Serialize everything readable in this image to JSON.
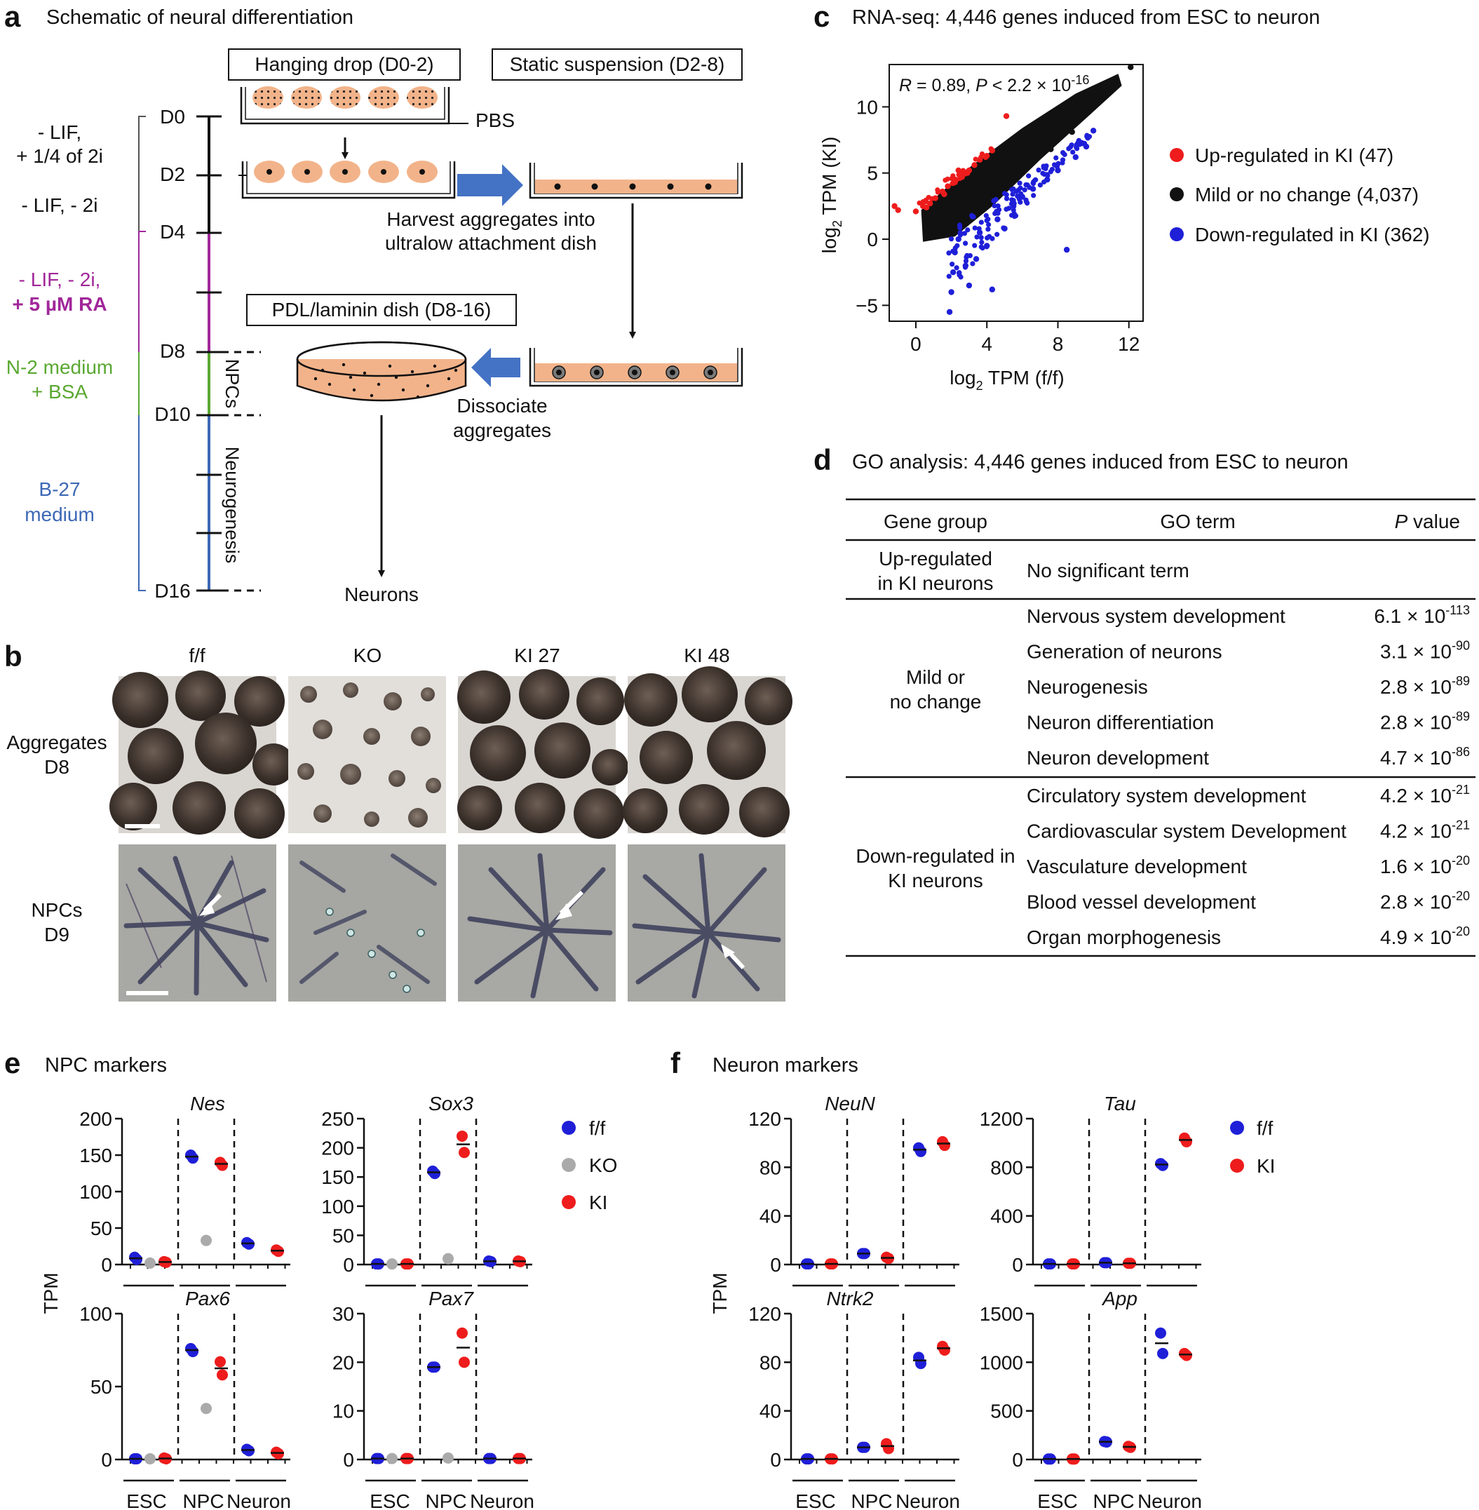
{
  "colors": {
    "ff": "#1f1fd8",
    "ko": "#aaaaaa",
    "ki": "#ee1c1c",
    "black": "#111111",
    "ra_purple": "#a1279a",
    "n2_green": "#5aa832",
    "b27_blue": "#3d68b5",
    "aggregate_fill": "#f2b38a",
    "arrow_blue": "#4472c4"
  },
  "panel_a": {
    "label": "a",
    "title": "Schematic of neural differentiation",
    "medium1_line1": "- LIF,",
    "medium1_line2": "+ 1/4 of 2i",
    "medium2": "- LIF, - 2i",
    "medium3_line1": "- LIF, - 2i,",
    "medium3_line2": "+ 5 µM RA",
    "medium4_line1": "N-2 medium",
    "medium4_line2": "+ BSA",
    "medium5_line1": "B-27",
    "medium5_line2": "medium",
    "days": [
      "D0",
      "D2",
      "D4",
      "D8",
      "D10",
      "D16"
    ],
    "npcs_label": "NPCs",
    "neurogenesis_label": "Neurogenesis",
    "hanging_drop": "Hanging drop (D0-2)",
    "static_suspension": "Static suspension (D2-8)",
    "pbs": "PBS",
    "harvest_line1": "Harvest aggregates into",
    "harvest_line2": "ultralow attachment dish",
    "pdl_dish": "PDL/laminin dish (D8-16)",
    "dissociate_line1": "Dissociate",
    "dissociate_line2": "aggregates",
    "neurons": "Neurons"
  },
  "panel_b": {
    "label": "b",
    "columns": [
      "f/f",
      "KO",
      "KI 27",
      "KI 48"
    ],
    "row1_line1": "Aggregates",
    "row1_line2": "D8",
    "row2_line1": "NPCs",
    "row2_line2": "D9"
  },
  "panel_c": {
    "label": "c",
    "title": "RNA-seq: 4,446 genes induced from ESC to neuron",
    "stat_r": "R",
    "stat_r_val": " = 0.89, ",
    "stat_p": "P",
    "stat_p_val": " < 2.2 × 10",
    "stat_p_exp": "-16",
    "xlabel_a": "log",
    "xlabel_sub": "2",
    "xlabel_b": " TPM (f/f)",
    "ylabel_a": "log",
    "ylabel_sub": "2",
    "ylabel_b": " TPM (KI)",
    "xticks": [
      "0",
      "4",
      "8",
      "12"
    ],
    "yticks": [
      "−5",
      "0",
      "5",
      "10"
    ],
    "legend": [
      {
        "label": "Up-regulated in KI (47)",
        "color": "#ee1c1c"
      },
      {
        "label": "Mild or no change (4,037)",
        "color": "#111111"
      },
      {
        "label": "Down-regulated in KI (362)",
        "color": "#1f1fd8"
      }
    ]
  },
  "panel_d": {
    "label": "d",
    "title": "GO analysis: 4,446 genes induced from ESC to neuron",
    "header_group": "Gene group",
    "header_term": "GO term",
    "header_p": "P",
    "header_p_rest": " value",
    "group_up_line1": "Up-regulated",
    "group_up_line2": "in KI neurons",
    "up_term": "No significant term",
    "group_mild_line1": "Mild or",
    "group_mild_line2": "no change",
    "group_down_line1": "Down-regulated in",
    "group_down_line2": "KI neurons",
    "mild_rows": [
      {
        "term": "Nervous system development",
        "p": "6.1 × 10",
        "exp": "-113"
      },
      {
        "term": "Generation of neurons",
        "p": "3.1 × 10",
        "exp": "-90"
      },
      {
        "term": "Neurogenesis",
        "p": "2.8 × 10",
        "exp": "-89"
      },
      {
        "term": "Neuron differentiation",
        "p": "2.8 × 10",
        "exp": "-89"
      },
      {
        "term": "Neuron development",
        "p": "4.7 × 10",
        "exp": "-86"
      }
    ],
    "down_rows": [
      {
        "term": "Circulatory system development",
        "p": "4.2 × 10",
        "exp": "-21"
      },
      {
        "term": "Cardiovascular system Development",
        "p": "4.2 × 10",
        "exp": "-21"
      },
      {
        "term": "Vasculature development",
        "p": "1.6 × 10",
        "exp": "-20"
      },
      {
        "term": "Blood vessel development",
        "p": "2.8 × 10",
        "exp": "-20"
      },
      {
        "term": "Organ morphogenesis",
        "p": "4.9 × 10",
        "exp": "-20"
      }
    ]
  },
  "panel_e": {
    "label": "e",
    "title": "NPC markers",
    "ylabel": "TPM",
    "groups": [
      "ESC",
      "NPC",
      "Neuron"
    ],
    "legend": [
      "f/f",
      "KO",
      "KI"
    ]
  },
  "panel_f": {
    "label": "f",
    "title": "Neuron markers",
    "ylabel": "TPM",
    "groups": [
      "ESC",
      "NPC",
      "Neuron"
    ],
    "legend": [
      "f/f",
      "KI"
    ]
  },
  "chart_data": [
    {
      "type": "scatter",
      "panel": "c",
      "title": "RNA-seq: 4,446 genes induced from ESC to neuron",
      "xlabel": "log2 TPM (f/f)",
      "ylabel": "log2 TPM (KI)",
      "xlim": [
        -1.5,
        12.8
      ],
      "ylim": [
        -6.2,
        13.2
      ],
      "xticks": [
        0,
        4,
        8,
        12
      ],
      "yticks": [
        -5,
        0,
        5,
        10
      ],
      "annotation": "R = 0.89, P < 2.2 × 10^-16",
      "series": [
        {
          "name": "Up-regulated in KI (47)",
          "color": "#ee1c1c",
          "points": [
            [
              -1.2,
              2.5
            ],
            [
              -1.0,
              2.2
            ],
            [
              0.0,
              2.1
            ],
            [
              0.4,
              2.5
            ],
            [
              0.8,
              2.7
            ],
            [
              1.1,
              3.1
            ],
            [
              1.5,
              3.6
            ],
            [
              1.8,
              4.0
            ],
            [
              2.2,
              4.3
            ],
            [
              2.6,
              4.7
            ],
            [
              3.0,
              5.2
            ],
            [
              3.3,
              5.6
            ],
            [
              3.6,
              6.0
            ],
            [
              4.0,
              6.3
            ],
            [
              4.3,
              6.7
            ],
            [
              5.1,
              9.3
            ],
            [
              2.4,
              5.2
            ],
            [
              1.6,
              3.4
            ],
            [
              0.6,
              2.4
            ],
            [
              2.9,
              5.0
            ]
          ]
        },
        {
          "name": "Mild or no change (4,037)",
          "color": "#111111",
          "points": [
            [
              12.1,
              13.0
            ],
            [
              11.2,
              12.1
            ],
            [
              10.6,
              11.5
            ],
            [
              10.0,
              10.8
            ],
            [
              9.5,
              10.2
            ],
            [
              9.0,
              9.6
            ],
            [
              8.4,
              9.2
            ],
            [
              7.8,
              8.5
            ],
            [
              7.2,
              7.8
            ],
            [
              6.5,
              7.1
            ],
            [
              5.8,
              6.4
            ],
            [
              5.2,
              5.7
            ],
            [
              4.6,
              5.0
            ],
            [
              4.0,
              4.4
            ],
            [
              3.4,
              3.8
            ],
            [
              2.8,
              3.1
            ],
            [
              2.2,
              2.5
            ],
            [
              1.6,
              1.8
            ],
            [
              1.0,
              1.3
            ],
            [
              0.8,
              0.4
            ],
            [
              3.6,
              2.9
            ],
            [
              5.0,
              4.5
            ],
            [
              6.8,
              6.2
            ],
            [
              8.8,
              8.1
            ],
            [
              2.5,
              1.5
            ],
            [
              4.4,
              3.4
            ],
            [
              6.0,
              5.0
            ],
            [
              7.6,
              6.8
            ]
          ]
        },
        {
          "name": "Down-regulated in KI (362)",
          "color": "#1f1fd8",
          "points": [
            [
              1.9,
              -5.5
            ],
            [
              2.0,
              -4.0
            ],
            [
              2.1,
              -2.5
            ],
            [
              2.2,
              -1.0
            ],
            [
              2.4,
              0.0
            ],
            [
              2.8,
              -2.0
            ],
            [
              3.0,
              -3.5
            ],
            [
              3.4,
              -1.5
            ],
            [
              3.6,
              0.5
            ],
            [
              4.0,
              -0.5
            ],
            [
              4.3,
              -3.8
            ],
            [
              4.6,
              1.5
            ],
            [
              5.0,
              0.8
            ],
            [
              5.5,
              2.5
            ],
            [
              6.0,
              3.2
            ],
            [
              6.6,
              3.8
            ],
            [
              7.4,
              4.5
            ],
            [
              8.0,
              5.2
            ],
            [
              8.5,
              -0.8
            ],
            [
              9.0,
              6.2
            ],
            [
              9.6,
              7.0
            ],
            [
              10.0,
              8.2
            ]
          ]
        }
      ]
    },
    {
      "type": "scatter",
      "panel": "e",
      "title": "Nes",
      "ylabel": "TPM",
      "ylim": [
        0,
        200
      ],
      "yticks": [
        0,
        50,
        100,
        150,
        200
      ],
      "categories": [
        "ESC",
        "NPC",
        "Neuron"
      ],
      "series": [
        {
          "name": "f/f",
          "values": [
            [
              10,
              7
            ],
            [
              150,
              146
            ],
            [
              30,
              28
            ]
          ]
        },
        {
          "name": "KO",
          "values": [
            [
              2
            ],
            [
              33
            ],
            []
          ]
        },
        {
          "name": "KI",
          "values": [
            [
              4,
              3
            ],
            [
              140,
              136
            ],
            [
              20,
              18
            ]
          ]
        }
      ]
    },
    {
      "type": "scatter",
      "panel": "e",
      "title": "Sox3",
      "ylabel": "TPM",
      "ylim": [
        0,
        250
      ],
      "yticks": [
        0,
        50,
        100,
        150,
        200,
        250
      ],
      "categories": [
        "ESC",
        "NPC",
        "Neuron"
      ],
      "series": [
        {
          "name": "f/f",
          "values": [
            [
              1,
              1
            ],
            [
              160,
              156
            ],
            [
              6,
              5
            ]
          ]
        },
        {
          "name": "KO",
          "values": [
            [
              1
            ],
            [
              10
            ],
            []
          ]
        },
        {
          "name": "KI",
          "values": [
            [
              1,
              1
            ],
            [
              220,
              192
            ],
            [
              6,
              5
            ]
          ]
        }
      ]
    },
    {
      "type": "scatter",
      "panel": "e",
      "title": "Pax6",
      "ylabel": "TPM",
      "ylim": [
        0,
        100
      ],
      "yticks": [
        0,
        50,
        100
      ],
      "categories": [
        "ESC",
        "NPC",
        "Neuron"
      ],
      "series": [
        {
          "name": "f/f",
          "values": [
            [
              0.5,
              0.5
            ],
            [
              76,
              74
            ],
            [
              7,
              6
            ]
          ]
        },
        {
          "name": "KO",
          "values": [
            [
              0.5
            ],
            [
              35
            ],
            []
          ]
        },
        {
          "name": "KI",
          "values": [
            [
              1,
              0.5
            ],
            [
              67,
              58
            ],
            [
              5,
              4
            ]
          ]
        }
      ]
    },
    {
      "type": "scatter",
      "panel": "e",
      "title": "Pax7",
      "ylabel": "TPM",
      "ylim": [
        0,
        30
      ],
      "yticks": [
        0,
        10,
        20,
        30
      ],
      "categories": [
        "ESC",
        "NPC",
        "Neuron"
      ],
      "series": [
        {
          "name": "f/f",
          "values": [
            [
              0.2,
              0.2
            ],
            [
              19,
              19
            ],
            [
              0.2,
              0.2
            ]
          ]
        },
        {
          "name": "KO",
          "values": [
            [
              0.2
            ],
            [
              0.3
            ],
            []
          ]
        },
        {
          "name": "KI",
          "values": [
            [
              0.2,
              0.2
            ],
            [
              26,
              20
            ],
            [
              0.2,
              0.2
            ]
          ]
        }
      ]
    },
    {
      "type": "scatter",
      "panel": "f",
      "title": "NeuN",
      "ylabel": "TPM",
      "ylim": [
        0,
        120
      ],
      "yticks": [
        0,
        40,
        80,
        120
      ],
      "categories": [
        "ESC",
        "NPC",
        "Neuron"
      ],
      "series": [
        {
          "name": "f/f",
          "values": [
            [
              0.5,
              0.5
            ],
            [
              9,
              9
            ],
            [
              96,
              93
            ]
          ]
        },
        {
          "name": "KI",
          "values": [
            [
              0.5,
              0.5
            ],
            [
              6,
              5
            ],
            [
              101,
              98
            ]
          ]
        }
      ]
    },
    {
      "type": "scatter",
      "panel": "f",
      "title": "Tau",
      "ylabel": "TPM",
      "ylim": [
        0,
        1200
      ],
      "yticks": [
        0,
        400,
        800,
        1200
      ],
      "categories": [
        "ESC",
        "NPC",
        "Neuron"
      ],
      "series": [
        {
          "name": "f/f",
          "values": [
            [
              5,
              5
            ],
            [
              15,
              15
            ],
            [
              830,
              815
            ]
          ]
        },
        {
          "name": "KI",
          "values": [
            [
              5,
              5
            ],
            [
              10,
              10
            ],
            [
              1040,
              1010
            ]
          ]
        }
      ]
    },
    {
      "type": "scatter",
      "panel": "f",
      "title": "Ntrk2",
      "ylabel": "TPM",
      "ylim": [
        0,
        120
      ],
      "yticks": [
        0,
        40,
        80,
        120
      ],
      "categories": [
        "ESC",
        "NPC",
        "Neuron"
      ],
      "series": [
        {
          "name": "f/f",
          "values": [
            [
              0.5,
              0.5
            ],
            [
              10,
              10
            ],
            [
              84,
              79
            ]
          ]
        },
        {
          "name": "KI",
          "values": [
            [
              0.5,
              0.5
            ],
            [
              13,
              9
            ],
            [
              93,
              90
            ]
          ]
        }
      ]
    },
    {
      "type": "scatter",
      "panel": "f",
      "title": "App",
      "ylabel": "TPM",
      "ylim": [
        0,
        1500
      ],
      "yticks": [
        0,
        500,
        1000,
        1500
      ],
      "categories": [
        "ESC",
        "NPC",
        "Neuron"
      ],
      "series": [
        {
          "name": "f/f",
          "values": [
            [
              5,
              5
            ],
            [
              185,
              180
            ],
            [
              1300,
              1090
            ]
          ]
        },
        {
          "name": "KI",
          "values": [
            [
              5,
              5
            ],
            [
              135,
              125
            ],
            [
              1090,
              1070
            ]
          ]
        }
      ]
    }
  ]
}
